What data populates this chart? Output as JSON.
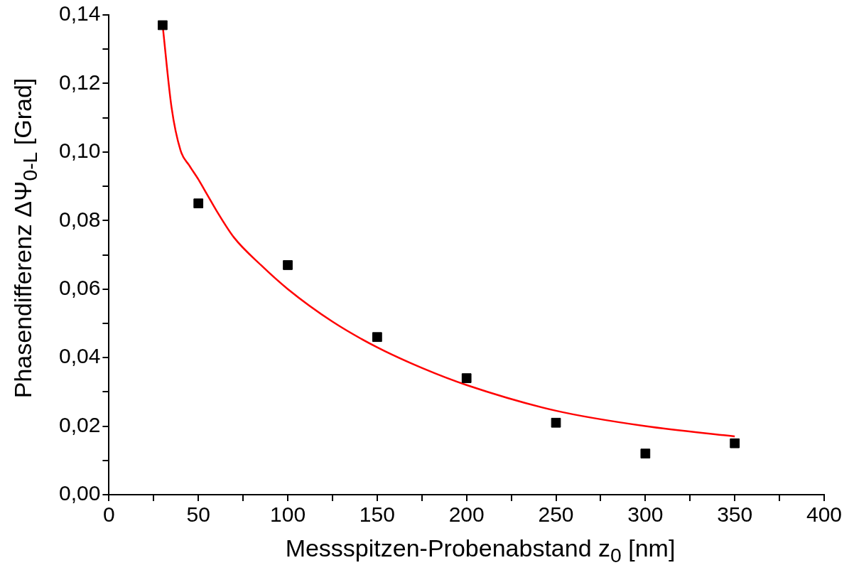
{
  "chart_data": {
    "type": "scatter",
    "xlabel": "Messspitzen-Probenabstand z$_{0}$ [nm]",
    "ylabel": "Phasendifferenz ΔΨ$_{0-L}$ [Grad]",
    "series": [
      {
        "color": "#000000",
        "marker": "square",
        "x": [
          30,
          50,
          100,
          150,
          200,
          250,
          300,
          350
        ],
        "values": [
          0.137,
          0.085,
          0.067,
          0.046,
          0.034,
          0.021,
          0.012,
          0.015
        ]
      },
      {
        "type": "line",
        "color": "#ff0000",
        "marker": "none",
        "line_style": "solid",
        "x": [
          30,
          35,
          40,
          45,
          50,
          55,
          60,
          70,
          85,
          100,
          125,
          150,
          175,
          200,
          250,
          300,
          350
        ],
        "values": [
          0.137,
          0.113,
          0.1005,
          0.096,
          0.092,
          0.0875,
          0.083,
          0.075,
          0.067,
          0.06,
          0.0505,
          0.043,
          0.037,
          0.032,
          0.0245,
          0.02,
          0.017
        ]
      }
    ],
    "xlim": [
      0,
      400
    ],
    "xticks": [
      0,
      {
        "value": 25,
        "label": null
      },
      50,
      {
        "value": 75,
        "label": null
      },
      100,
      {
        "value": 125,
        "label": null
      },
      150,
      {
        "value": 175,
        "label": null
      },
      200,
      {
        "value": 225,
        "label": null
      },
      250,
      {
        "value": 275,
        "label": null
      },
      300,
      {
        "value": 325,
        "label": null
      },
      350,
      {
        "value": 375,
        "label": null
      },
      400
    ],
    "ylim": [
      0,
      0.14
    ],
    "yticks": [
      {
        "value": 0,
        "label": "0,00"
      },
      {
        "value": 0.01,
        "label": null
      },
      {
        "value": 0.02,
        "label": "0,02"
      },
      {
        "value": 0.03,
        "label": null
      },
      {
        "value": 0.04,
        "label": "0,04"
      },
      {
        "value": 0.05,
        "label": null
      },
      {
        "value": 0.06,
        "label": "0,06"
      },
      {
        "value": 0.07,
        "label": null
      },
      {
        "value": 0.08,
        "label": "0,08"
      },
      {
        "value": 0.09,
        "label": null
      },
      {
        "value": 0.1,
        "label": "0,10"
      },
      {
        "value": 0.11,
        "label": null
      },
      {
        "value": 0.12,
        "label": "0,12"
      },
      {
        "value": 0.13,
        "label": null
      },
      {
        "value": 0.14,
        "label": "0,14"
      }
    ],
    "grid": false,
    "legend": false
  }
}
